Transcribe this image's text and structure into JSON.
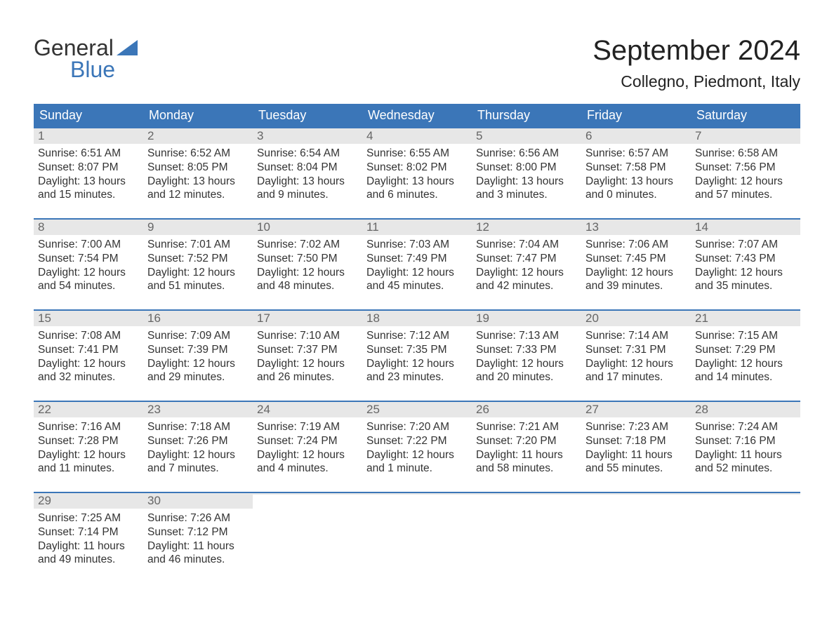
{
  "logo": {
    "line1": "General",
    "line2": "Blue"
  },
  "title": "September 2024",
  "location": "Collegno, Piedmont, Italy",
  "colors": {
    "header_bg": "#3b76b8",
    "header_text": "#ffffff",
    "daynum_bg": "#e7e7e7",
    "daynum_text": "#666666",
    "body_text": "#333333",
    "rule": "#3b76b8",
    "logo_blue": "#3b76b8",
    "page_bg": "#ffffff"
  },
  "day_headers": [
    "Sunday",
    "Monday",
    "Tuesday",
    "Wednesday",
    "Thursday",
    "Friday",
    "Saturday"
  ],
  "weeks": [
    [
      {
        "n": "1",
        "sunrise": "Sunrise: 6:51 AM",
        "sunset": "Sunset: 8:07 PM",
        "day1": "Daylight: 13 hours",
        "day2": "and 15 minutes."
      },
      {
        "n": "2",
        "sunrise": "Sunrise: 6:52 AM",
        "sunset": "Sunset: 8:05 PM",
        "day1": "Daylight: 13 hours",
        "day2": "and 12 minutes."
      },
      {
        "n": "3",
        "sunrise": "Sunrise: 6:54 AM",
        "sunset": "Sunset: 8:04 PM",
        "day1": "Daylight: 13 hours",
        "day2": "and 9 minutes."
      },
      {
        "n": "4",
        "sunrise": "Sunrise: 6:55 AM",
        "sunset": "Sunset: 8:02 PM",
        "day1": "Daylight: 13 hours",
        "day2": "and 6 minutes."
      },
      {
        "n": "5",
        "sunrise": "Sunrise: 6:56 AM",
        "sunset": "Sunset: 8:00 PM",
        "day1": "Daylight: 13 hours",
        "day2": "and 3 minutes."
      },
      {
        "n": "6",
        "sunrise": "Sunrise: 6:57 AM",
        "sunset": "Sunset: 7:58 PM",
        "day1": "Daylight: 13 hours",
        "day2": "and 0 minutes."
      },
      {
        "n": "7",
        "sunrise": "Sunrise: 6:58 AM",
        "sunset": "Sunset: 7:56 PM",
        "day1": "Daylight: 12 hours",
        "day2": "and 57 minutes."
      }
    ],
    [
      {
        "n": "8",
        "sunrise": "Sunrise: 7:00 AM",
        "sunset": "Sunset: 7:54 PM",
        "day1": "Daylight: 12 hours",
        "day2": "and 54 minutes."
      },
      {
        "n": "9",
        "sunrise": "Sunrise: 7:01 AM",
        "sunset": "Sunset: 7:52 PM",
        "day1": "Daylight: 12 hours",
        "day2": "and 51 minutes."
      },
      {
        "n": "10",
        "sunrise": "Sunrise: 7:02 AM",
        "sunset": "Sunset: 7:50 PM",
        "day1": "Daylight: 12 hours",
        "day2": "and 48 minutes."
      },
      {
        "n": "11",
        "sunrise": "Sunrise: 7:03 AM",
        "sunset": "Sunset: 7:49 PM",
        "day1": "Daylight: 12 hours",
        "day2": "and 45 minutes."
      },
      {
        "n": "12",
        "sunrise": "Sunrise: 7:04 AM",
        "sunset": "Sunset: 7:47 PM",
        "day1": "Daylight: 12 hours",
        "day2": "and 42 minutes."
      },
      {
        "n": "13",
        "sunrise": "Sunrise: 7:06 AM",
        "sunset": "Sunset: 7:45 PM",
        "day1": "Daylight: 12 hours",
        "day2": "and 39 minutes."
      },
      {
        "n": "14",
        "sunrise": "Sunrise: 7:07 AM",
        "sunset": "Sunset: 7:43 PM",
        "day1": "Daylight: 12 hours",
        "day2": "and 35 minutes."
      }
    ],
    [
      {
        "n": "15",
        "sunrise": "Sunrise: 7:08 AM",
        "sunset": "Sunset: 7:41 PM",
        "day1": "Daylight: 12 hours",
        "day2": "and 32 minutes."
      },
      {
        "n": "16",
        "sunrise": "Sunrise: 7:09 AM",
        "sunset": "Sunset: 7:39 PM",
        "day1": "Daylight: 12 hours",
        "day2": "and 29 minutes."
      },
      {
        "n": "17",
        "sunrise": "Sunrise: 7:10 AM",
        "sunset": "Sunset: 7:37 PM",
        "day1": "Daylight: 12 hours",
        "day2": "and 26 minutes."
      },
      {
        "n": "18",
        "sunrise": "Sunrise: 7:12 AM",
        "sunset": "Sunset: 7:35 PM",
        "day1": "Daylight: 12 hours",
        "day2": "and 23 minutes."
      },
      {
        "n": "19",
        "sunrise": "Sunrise: 7:13 AM",
        "sunset": "Sunset: 7:33 PM",
        "day1": "Daylight: 12 hours",
        "day2": "and 20 minutes."
      },
      {
        "n": "20",
        "sunrise": "Sunrise: 7:14 AM",
        "sunset": "Sunset: 7:31 PM",
        "day1": "Daylight: 12 hours",
        "day2": "and 17 minutes."
      },
      {
        "n": "21",
        "sunrise": "Sunrise: 7:15 AM",
        "sunset": "Sunset: 7:29 PM",
        "day1": "Daylight: 12 hours",
        "day2": "and 14 minutes."
      }
    ],
    [
      {
        "n": "22",
        "sunrise": "Sunrise: 7:16 AM",
        "sunset": "Sunset: 7:28 PM",
        "day1": "Daylight: 12 hours",
        "day2": "and 11 minutes."
      },
      {
        "n": "23",
        "sunrise": "Sunrise: 7:18 AM",
        "sunset": "Sunset: 7:26 PM",
        "day1": "Daylight: 12 hours",
        "day2": "and 7 minutes."
      },
      {
        "n": "24",
        "sunrise": "Sunrise: 7:19 AM",
        "sunset": "Sunset: 7:24 PM",
        "day1": "Daylight: 12 hours",
        "day2": "and 4 minutes."
      },
      {
        "n": "25",
        "sunrise": "Sunrise: 7:20 AM",
        "sunset": "Sunset: 7:22 PM",
        "day1": "Daylight: 12 hours",
        "day2": "and 1 minute."
      },
      {
        "n": "26",
        "sunrise": "Sunrise: 7:21 AM",
        "sunset": "Sunset: 7:20 PM",
        "day1": "Daylight: 11 hours",
        "day2": "and 58 minutes."
      },
      {
        "n": "27",
        "sunrise": "Sunrise: 7:23 AM",
        "sunset": "Sunset: 7:18 PM",
        "day1": "Daylight: 11 hours",
        "day2": "and 55 minutes."
      },
      {
        "n": "28",
        "sunrise": "Sunrise: 7:24 AM",
        "sunset": "Sunset: 7:16 PM",
        "day1": "Daylight: 11 hours",
        "day2": "and 52 minutes."
      }
    ],
    [
      {
        "n": "29",
        "sunrise": "Sunrise: 7:25 AM",
        "sunset": "Sunset: 7:14 PM",
        "day1": "Daylight: 11 hours",
        "day2": "and 49 minutes."
      },
      {
        "n": "30",
        "sunrise": "Sunrise: 7:26 AM",
        "sunset": "Sunset: 7:12 PM",
        "day1": "Daylight: 11 hours",
        "day2": "and 46 minutes."
      },
      {
        "empty": true
      },
      {
        "empty": true
      },
      {
        "empty": true
      },
      {
        "empty": true
      },
      {
        "empty": true
      }
    ]
  ]
}
